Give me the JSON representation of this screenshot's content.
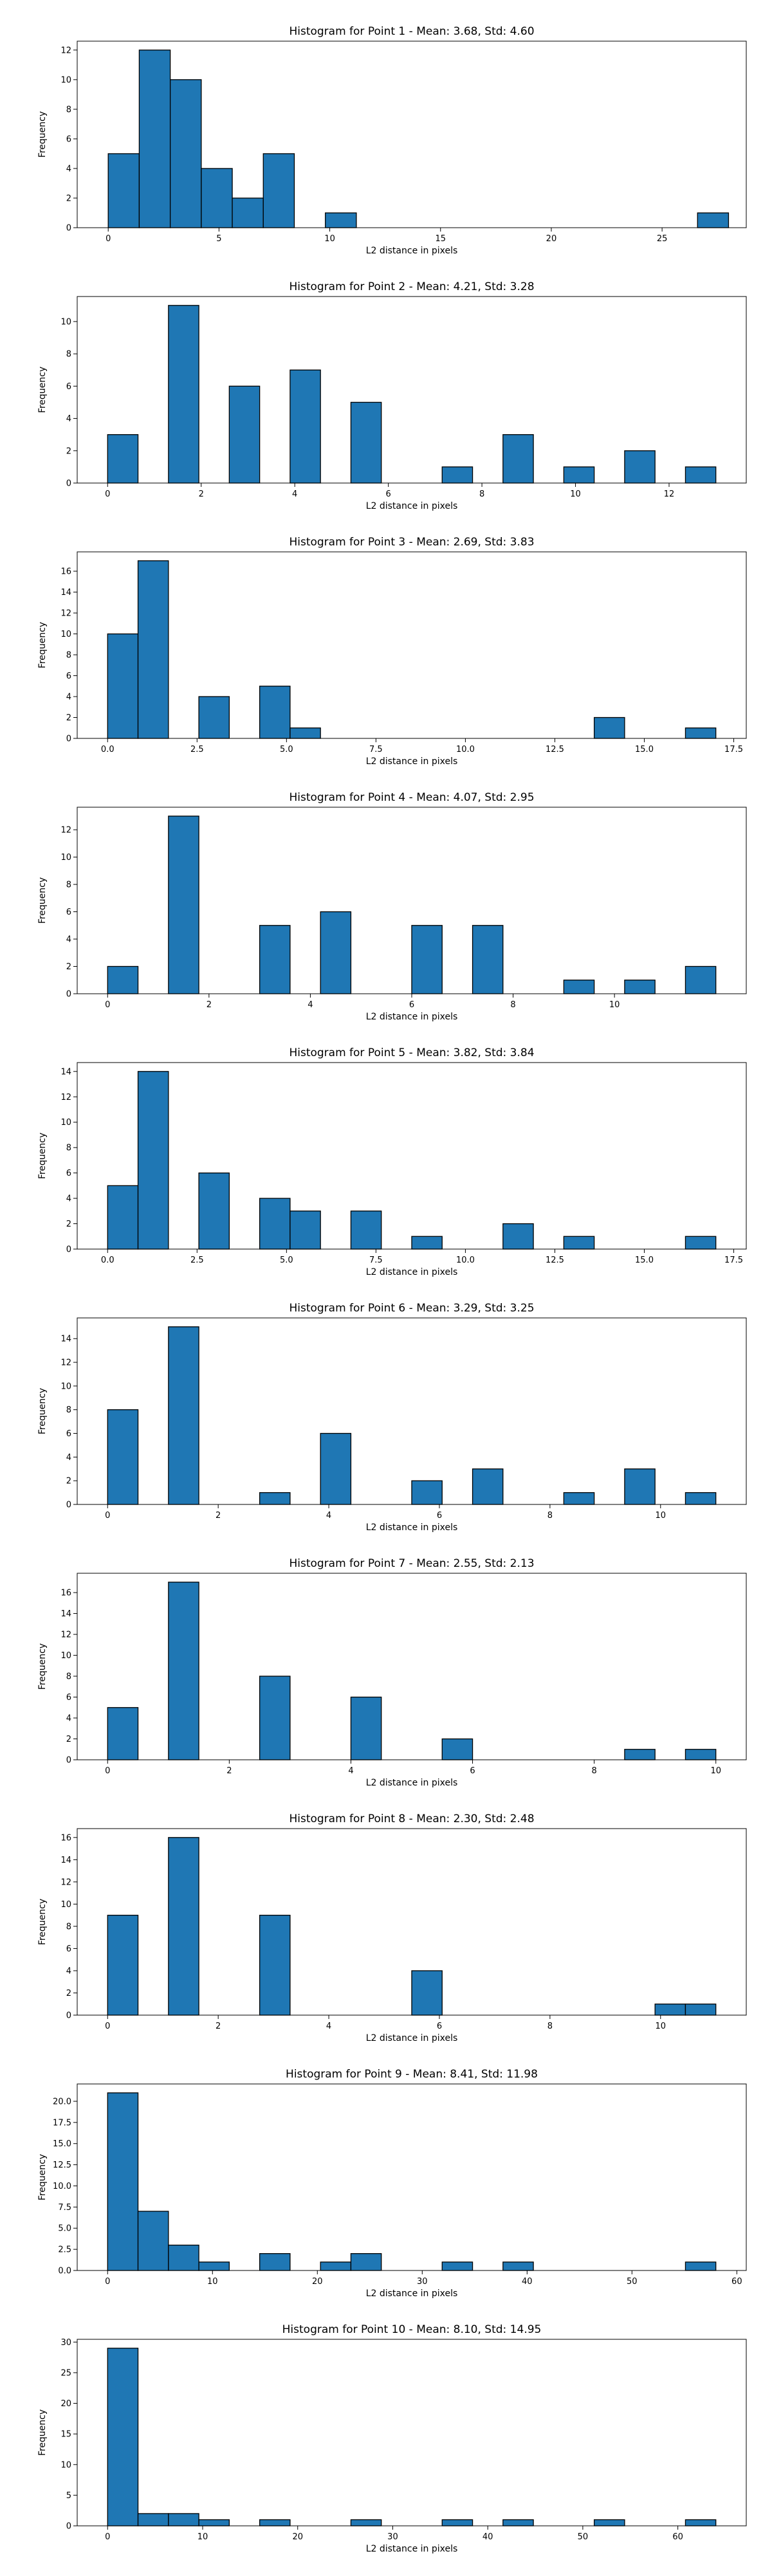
{
  "chart_data": [
    {
      "type": "bar",
      "title": "Histogram for Point 1 - Mean: 3.68, Std: 4.60",
      "xlabel": "L2 distance in pixels",
      "ylabel": "Frequency",
      "xlim": [
        -1.4,
        28.8
      ],
      "ylim": [
        0,
        12.6
      ],
      "xticks": [
        0,
        5,
        10,
        15,
        20,
        25
      ],
      "xtick_labels": [
        "0",
        "5",
        "10",
        "15",
        "20",
        "25"
      ],
      "yticks": [
        0,
        2,
        4,
        6,
        8,
        10,
        12
      ],
      "ytick_labels": [
        "0",
        "2",
        "4",
        "6",
        "8",
        "10",
        "12"
      ],
      "bins": [
        {
          "x0": 0.0,
          "x1": 1.4,
          "count": 5
        },
        {
          "x0": 1.4,
          "x1": 2.8,
          "count": 12
        },
        {
          "x0": 2.8,
          "x1": 4.2,
          "count": 10
        },
        {
          "x0": 4.2,
          "x1": 5.6,
          "count": 4
        },
        {
          "x0": 5.6,
          "x1": 7.0,
          "count": 2
        },
        {
          "x0": 7.0,
          "x1": 8.4,
          "count": 5
        },
        {
          "x0": 9.8,
          "x1": 11.2,
          "count": 1
        },
        {
          "x0": 26.6,
          "x1": 28.0,
          "count": 1
        }
      ],
      "grid": false
    },
    {
      "type": "bar",
      "title": "Histogram for Point 2 - Mean: 4.21, Std: 3.28",
      "xlabel": "L2 distance in pixels",
      "ylabel": "Frequency",
      "xlim": [
        -0.65,
        13.65
      ],
      "ylim": [
        0,
        11.55
      ],
      "xticks": [
        0,
        2,
        4,
        6,
        8,
        10,
        12
      ],
      "xtick_labels": [
        "0",
        "2",
        "4",
        "6",
        "8",
        "10",
        "12"
      ],
      "yticks": [
        0,
        2,
        4,
        6,
        8,
        10
      ],
      "ytick_labels": [
        "0",
        "2",
        "4",
        "6",
        "8",
        "10"
      ],
      "bins": [
        {
          "x0": 0.0,
          "x1": 0.65,
          "count": 3
        },
        {
          "x0": 1.3,
          "x1": 1.95,
          "count": 11
        },
        {
          "x0": 2.6,
          "x1": 3.25,
          "count": 6
        },
        {
          "x0": 3.9,
          "x1": 4.55,
          "count": 7
        },
        {
          "x0": 5.2,
          "x1": 5.85,
          "count": 5
        },
        {
          "x0": 7.15,
          "x1": 7.8,
          "count": 1
        },
        {
          "x0": 8.45,
          "x1": 9.1,
          "count": 3
        },
        {
          "x0": 9.75,
          "x1": 10.4,
          "count": 1
        },
        {
          "x0": 11.05,
          "x1": 11.7,
          "count": 2
        },
        {
          "x0": 12.35,
          "x1": 13.0,
          "count": 1
        }
      ],
      "grid": false
    },
    {
      "type": "bar",
      "title": "Histogram for Point 3 - Mean: 2.69, Std: 3.83",
      "xlabel": "L2 distance in pixels",
      "ylabel": "Frequency",
      "xlim": [
        -0.85,
        17.85
      ],
      "ylim": [
        0,
        17.85
      ],
      "xticks": [
        0,
        2.5,
        5,
        7.5,
        10,
        12.5,
        15,
        17.5
      ],
      "xtick_labels": [
        "0.0",
        "2.5",
        "5.0",
        "7.5",
        "10.0",
        "12.5",
        "15.0",
        "17.5"
      ],
      "yticks": [
        0,
        2,
        4,
        6,
        8,
        10,
        12,
        14,
        16
      ],
      "ytick_labels": [
        "0",
        "2",
        "4",
        "6",
        "8",
        "10",
        "12",
        "14",
        "16"
      ],
      "bins": [
        {
          "x0": 0.0,
          "x1": 0.85,
          "count": 10
        },
        {
          "x0": 0.85,
          "x1": 1.7,
          "count": 17
        },
        {
          "x0": 2.55,
          "x1": 3.4,
          "count": 4
        },
        {
          "x0": 4.25,
          "x1": 5.1,
          "count": 5
        },
        {
          "x0": 5.1,
          "x1": 5.95,
          "count": 1
        },
        {
          "x0": 13.6,
          "x1": 14.45,
          "count": 2
        },
        {
          "x0": 16.15,
          "x1": 17.0,
          "count": 1
        }
      ],
      "grid": false
    },
    {
      "type": "bar",
      "title": "Histogram for Point 4 - Mean: 4.07, Std: 2.95",
      "xlabel": "L2 distance in pixels",
      "ylabel": "Frequency",
      "xlim": [
        -0.6,
        12.6
      ],
      "ylim": [
        0,
        13.65
      ],
      "xticks": [
        0,
        2,
        4,
        6,
        8,
        10
      ],
      "xtick_labels": [
        "0",
        "2",
        "4",
        "6",
        "8",
        "10"
      ],
      "yticks": [
        0,
        2,
        4,
        6,
        8,
        10,
        12
      ],
      "ytick_labels": [
        "0",
        "2",
        "4",
        "6",
        "8",
        "10",
        "12"
      ],
      "bins": [
        {
          "x0": 0.0,
          "x1": 0.6,
          "count": 2
        },
        {
          "x0": 1.2,
          "x1": 1.8,
          "count": 13
        },
        {
          "x0": 3.0,
          "x1": 3.6,
          "count": 5
        },
        {
          "x0": 4.2,
          "x1": 4.8,
          "count": 6
        },
        {
          "x0": 6.0,
          "x1": 6.6,
          "count": 5
        },
        {
          "x0": 7.2,
          "x1": 7.8,
          "count": 5
        },
        {
          "x0": 9.0,
          "x1": 9.6,
          "count": 1
        },
        {
          "x0": 10.2,
          "x1": 10.8,
          "count": 1
        },
        {
          "x0": 11.4,
          "x1": 12.0,
          "count": 2
        }
      ],
      "grid": false
    },
    {
      "type": "bar",
      "title": "Histogram for Point 5 - Mean: 3.82, Std: 3.84",
      "xlabel": "L2 distance in pixels",
      "ylabel": "Frequency",
      "xlim": [
        -0.85,
        17.85
      ],
      "ylim": [
        0,
        14.7
      ],
      "xticks": [
        0,
        2.5,
        5,
        7.5,
        10,
        12.5,
        15,
        17.5
      ],
      "xtick_labels": [
        "0.0",
        "2.5",
        "5.0",
        "7.5",
        "10.0",
        "12.5",
        "15.0",
        "17.5"
      ],
      "yticks": [
        0,
        2,
        4,
        6,
        8,
        10,
        12,
        14
      ],
      "ytick_labels": [
        "0",
        "2",
        "4",
        "6",
        "8",
        "10",
        "12",
        "14"
      ],
      "bins": [
        {
          "x0": 0.0,
          "x1": 0.85,
          "count": 5
        },
        {
          "x0": 0.85,
          "x1": 1.7,
          "count": 14
        },
        {
          "x0": 2.55,
          "x1": 3.4,
          "count": 6
        },
        {
          "x0": 4.25,
          "x1": 5.1,
          "count": 4
        },
        {
          "x0": 5.1,
          "x1": 5.95,
          "count": 3
        },
        {
          "x0": 6.8,
          "x1": 7.65,
          "count": 3
        },
        {
          "x0": 8.5,
          "x1": 9.35,
          "count": 1
        },
        {
          "x0": 11.05,
          "x1": 11.9,
          "count": 2
        },
        {
          "x0": 12.75,
          "x1": 13.6,
          "count": 1
        },
        {
          "x0": 16.15,
          "x1": 17.0,
          "count": 1
        }
      ],
      "grid": false
    },
    {
      "type": "bar",
      "title": "Histogram for Point 6 - Mean: 3.29, Std: 3.25",
      "xlabel": "L2 distance in pixels",
      "ylabel": "Frequency",
      "xlim": [
        -0.55,
        11.55
      ],
      "ylim": [
        0,
        15.75
      ],
      "xticks": [
        0,
        2,
        4,
        6,
        8,
        10
      ],
      "xtick_labels": [
        "0",
        "2",
        "4",
        "6",
        "8",
        "10"
      ],
      "yticks": [
        0,
        2,
        4,
        6,
        8,
        10,
        12,
        14
      ],
      "ytick_labels": [
        "0",
        "2",
        "4",
        "6",
        "8",
        "10",
        "12",
        "14"
      ],
      "bins": [
        {
          "x0": 0.0,
          "x1": 0.55,
          "count": 8
        },
        {
          "x0": 1.1,
          "x1": 1.65,
          "count": 15
        },
        {
          "x0": 2.75,
          "x1": 3.3,
          "count": 1
        },
        {
          "x0": 3.85,
          "x1": 4.4,
          "count": 6
        },
        {
          "x0": 5.5,
          "x1": 6.05,
          "count": 2
        },
        {
          "x0": 6.6,
          "x1": 7.15,
          "count": 3
        },
        {
          "x0": 8.25,
          "x1": 8.8,
          "count": 1
        },
        {
          "x0": 9.35,
          "x1": 9.9,
          "count": 3
        },
        {
          "x0": 10.45,
          "x1": 11.0,
          "count": 1
        }
      ],
      "grid": false
    },
    {
      "type": "bar",
      "title": "Histogram for Point 7 - Mean: 2.55, Std: 2.13",
      "xlabel": "L2 distance in pixels",
      "ylabel": "Frequency",
      "xlim": [
        -0.5,
        10.5
      ],
      "ylim": [
        0,
        17.85
      ],
      "xticks": [
        0,
        2,
        4,
        6,
        8,
        10
      ],
      "xtick_labels": [
        "0",
        "2",
        "4",
        "6",
        "8",
        "10"
      ],
      "yticks": [
        0,
        2,
        4,
        6,
        8,
        10,
        12,
        14,
        16
      ],
      "ytick_labels": [
        "0",
        "2",
        "4",
        "6",
        "8",
        "10",
        "12",
        "14",
        "16"
      ],
      "bins": [
        {
          "x0": 0.0,
          "x1": 0.5,
          "count": 5
        },
        {
          "x0": 1.0,
          "x1": 1.5,
          "count": 17
        },
        {
          "x0": 2.5,
          "x1": 3.0,
          "count": 8
        },
        {
          "x0": 4.0,
          "x1": 4.5,
          "count": 6
        },
        {
          "x0": 5.5,
          "x1": 6.0,
          "count": 2
        },
        {
          "x0": 8.5,
          "x1": 9.0,
          "count": 1
        },
        {
          "x0": 9.5,
          "x1": 10.0,
          "count": 1
        }
      ],
      "grid": false
    },
    {
      "type": "bar",
      "title": "Histogram for Point 8 - Mean: 2.30, Std: 2.48",
      "xlabel": "L2 distance in pixels",
      "ylabel": "Frequency",
      "xlim": [
        -0.55,
        11.55
      ],
      "ylim": [
        0,
        16.8
      ],
      "xticks": [
        0,
        2,
        4,
        6,
        8,
        10
      ],
      "xtick_labels": [
        "0",
        "2",
        "4",
        "6",
        "8",
        "10"
      ],
      "yticks": [
        0,
        2,
        4,
        6,
        8,
        10,
        12,
        14,
        16
      ],
      "ytick_labels": [
        "0",
        "2",
        "4",
        "6",
        "8",
        "10",
        "12",
        "14",
        "16"
      ],
      "bins": [
        {
          "x0": 0.0,
          "x1": 0.55,
          "count": 9
        },
        {
          "x0": 1.1,
          "x1": 1.65,
          "count": 16
        },
        {
          "x0": 2.75,
          "x1": 3.3,
          "count": 9
        },
        {
          "x0": 5.5,
          "x1": 6.05,
          "count": 4
        },
        {
          "x0": 9.9,
          "x1": 10.45,
          "count": 1
        },
        {
          "x0": 10.45,
          "x1": 11.0,
          "count": 1
        }
      ],
      "grid": false
    },
    {
      "type": "bar",
      "title": "Histogram for Point 9 - Mean: 8.41, Std: 11.98",
      "xlabel": "L2 distance in pixels",
      "ylabel": "Frequency",
      "xlim": [
        -2.9,
        60.9
      ],
      "ylim": [
        0,
        22.05
      ],
      "xticks": [
        0,
        10,
        20,
        30,
        40,
        50,
        60
      ],
      "xtick_labels": [
        "0",
        "10",
        "20",
        "30",
        "40",
        "50",
        "60"
      ],
      "yticks": [
        0,
        2.5,
        5,
        7.5,
        10,
        12.5,
        15,
        17.5,
        20
      ],
      "ytick_labels": [
        "0.0",
        "2.5",
        "5.0",
        "7.5",
        "10.0",
        "12.5",
        "15.0",
        "17.5",
        "20.0"
      ],
      "bins": [
        {
          "x0": 0.0,
          "x1": 2.9,
          "count": 21
        },
        {
          "x0": 2.9,
          "x1": 5.8,
          "count": 7
        },
        {
          "x0": 5.8,
          "x1": 8.7,
          "count": 3
        },
        {
          "x0": 8.7,
          "x1": 11.6,
          "count": 1
        },
        {
          "x0": 14.5,
          "x1": 17.4,
          "count": 2
        },
        {
          "x0": 20.3,
          "x1": 23.2,
          "count": 1
        },
        {
          "x0": 23.2,
          "x1": 26.1,
          "count": 2
        },
        {
          "x0": 31.9,
          "x1": 34.8,
          "count": 1
        },
        {
          "x0": 37.7,
          "x1": 40.6,
          "count": 1
        },
        {
          "x0": 55.1,
          "x1": 58.0,
          "count": 1
        }
      ],
      "grid": false
    },
    {
      "type": "bar",
      "title": "Histogram for Point 10 - Mean: 8.10, Std: 14.95",
      "xlabel": "L2 distance in pixels",
      "ylabel": "Frequency",
      "xlim": [
        -3.2,
        67.2
      ],
      "ylim": [
        0,
        30.45
      ],
      "xticks": [
        0,
        10,
        20,
        30,
        40,
        50,
        60
      ],
      "xtick_labels": [
        "0",
        "10",
        "20",
        "30",
        "40",
        "50",
        "60"
      ],
      "yticks": [
        0,
        5,
        10,
        15,
        20,
        25,
        30
      ],
      "ytick_labels": [
        "0",
        "5",
        "10",
        "15",
        "20",
        "25",
        "30"
      ],
      "bins": [
        {
          "x0": 0.0,
          "x1": 3.2,
          "count": 29
        },
        {
          "x0": 3.2,
          "x1": 6.4,
          "count": 2
        },
        {
          "x0": 6.4,
          "x1": 9.6,
          "count": 2
        },
        {
          "x0": 9.6,
          "x1": 12.8,
          "count": 1
        },
        {
          "x0": 16.0,
          "x1": 19.2,
          "count": 1
        },
        {
          "x0": 25.6,
          "x1": 28.8,
          "count": 1
        },
        {
          "x0": 35.2,
          "x1": 38.4,
          "count": 1
        },
        {
          "x0": 41.6,
          "x1": 44.8,
          "count": 1
        },
        {
          "x0": 51.2,
          "x1": 54.4,
          "count": 1
        },
        {
          "x0": 60.8,
          "x1": 64.0,
          "count": 1
        }
      ],
      "grid": false
    }
  ],
  "colors": {
    "bar_fill": "#1f77b4",
    "bar_edge": "#000000",
    "axes": "#000000",
    "background": "#ffffff"
  }
}
